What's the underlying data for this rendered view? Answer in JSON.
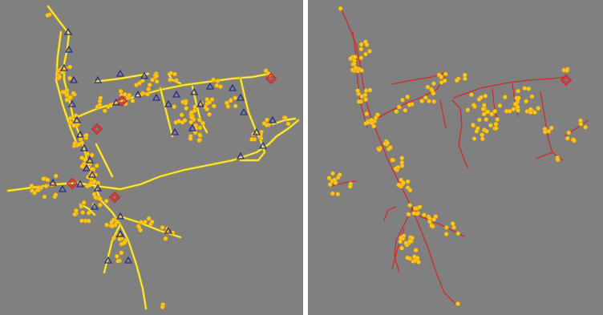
{
  "colors": {
    "background": "#7f807f",
    "yellow_line": "#fff176",
    "yellow_line_edge": "#c9b000",
    "red_line": "#d42a2a",
    "node_fill": "#ffc61a",
    "node_edge": "#d89a00",
    "triangle_stroke": "#2b2f8f",
    "diamond_stroke": "#d42a2a"
  },
  "panels": [
    {
      "name": "left",
      "description_visible_text": ""
    },
    {
      "name": "right",
      "description_visible_text": ""
    }
  ],
  "icons": {
    "consumer_node": "yellow-dot-icon",
    "triangle_marker": "blue-triangle-icon",
    "diamond_marker": "red-diamond-icon"
  }
}
